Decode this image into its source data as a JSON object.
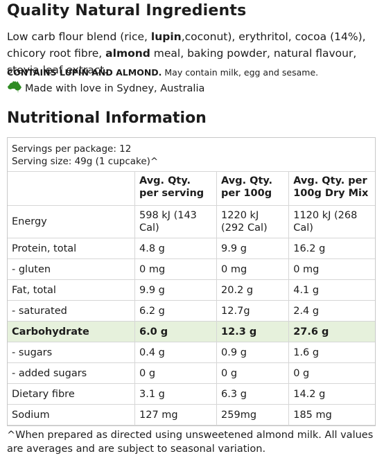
{
  "ingredients": {
    "title": "Quality Natural Ingredients",
    "text_1": "Low carb flour blend (rice, ",
    "bold_1": "lupin",
    "text_2": ",coconut), erythritol, cocoa (14%), chicory root fibre, ",
    "bold_2": "almond",
    "text_3": " meal, baking powder, natural flavour, stevia leaf extract.",
    "allergen_bold": "CONTAINS LUPIN AND ALMOND.",
    "allergen_text": " May contain milk, egg and sesame.",
    "origin_icon": "australia-map-icon",
    "origin_text": "Made with love in Sydney, Australia",
    "colors": {
      "australia_icon": "#2e8b22",
      "highlight_row": "#e6f1dc"
    }
  },
  "nutrition": {
    "title": "Nutritional Information",
    "servings_per_package": "Servings per package: 12",
    "serving_size": "Serving size: 49g (1 cupcake)^",
    "headers": [
      "",
      "Avg. Qty. per serving",
      "Avg. Qty. per 100g",
      "Avg. Qty. per 100g Dry Mix"
    ],
    "rows": [
      [
        "Energy",
        "598 kJ (143 Cal)",
        "1220 kJ (292 Cal)",
        "1120 kJ (268 Cal)"
      ],
      [
        "Protein, total",
        "4.8 g",
        "9.9 g",
        "16.2 g"
      ],
      [
        "- gluten",
        "0 mg",
        "0 mg",
        "0 mg"
      ],
      [
        "Fat, total",
        "9.9 g",
        "20.2 g",
        "4.1 g"
      ],
      [
        "- saturated",
        "6.2 g",
        "12.7g",
        "2.4 g"
      ],
      [
        "Carbohydrate",
        "6.0 g",
        "12.3 g",
        "27.6 g"
      ],
      [
        "- sugars",
        "0.4 g",
        "0.9 g",
        "1.6 g"
      ],
      [
        "- added sugars",
        "0 g",
        "0 g",
        "0 g"
      ],
      [
        "Dietary fibre",
        "3.1 g",
        "6.3 g",
        "14.2 g"
      ],
      [
        "Sodium",
        "127 mg",
        "259mg",
        "185 mg"
      ]
    ],
    "footnote": "^When prepared as directed using unsweetened almond milk. All values are averages and are subject to seasonal variation."
  }
}
